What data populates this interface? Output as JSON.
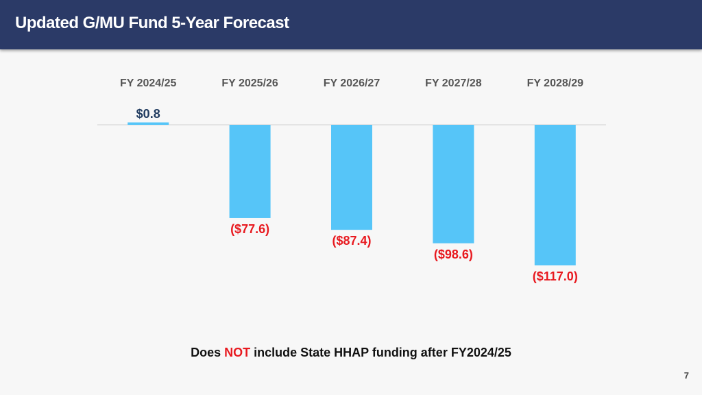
{
  "header": {
    "title": "Updated G/MU Fund 5-Year Forecast"
  },
  "chart_data": {
    "type": "bar",
    "title": "",
    "categories": [
      "FY 2024/25",
      "FY 2025/26",
      "FY 2026/27",
      "FY 2027/28",
      "FY 2028/29"
    ],
    "values": [
      0.8,
      -77.6,
      -87.4,
      -98.6,
      -117.0
    ],
    "data_labels": [
      "$0.8",
      "($77.6)",
      "($87.4)",
      "($98.6)",
      "($117.0)"
    ],
    "bar_color": "#56c5f8",
    "positive_label_color": "#1f3a5f",
    "negative_label_color": "#e8191f",
    "baseline_color": "#d0d0d0",
    "category_labels_position": "top",
    "grid": false,
    "legend": "none"
  },
  "footnote": {
    "prefix": "Does ",
    "emphasis": "NOT",
    "suffix": " include State HHAP funding after FY2024/25"
  },
  "page_number": "7"
}
